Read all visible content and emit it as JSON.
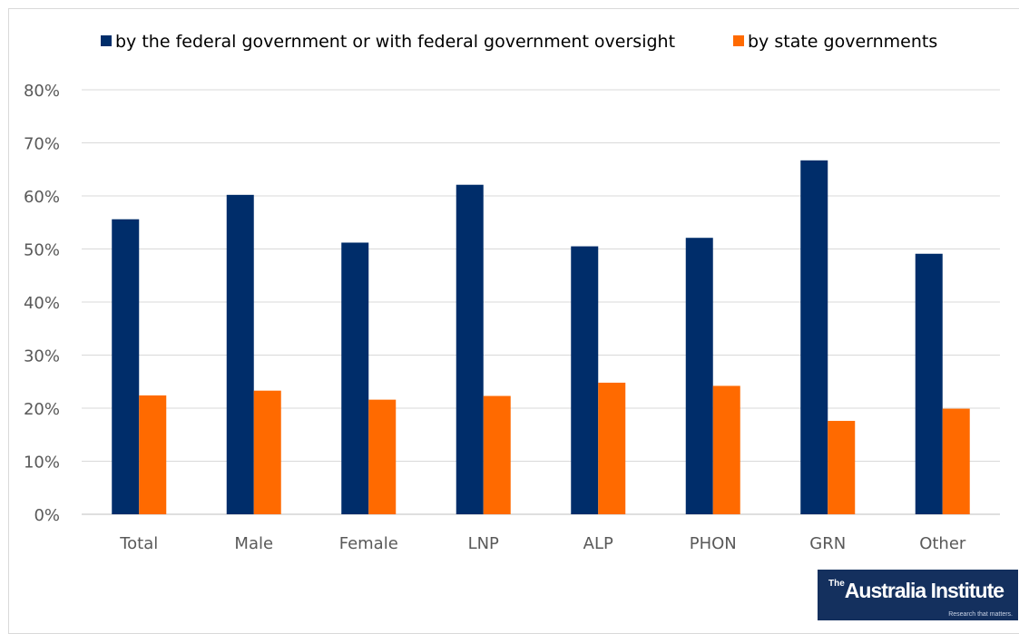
{
  "chart_data": {
    "type": "bar",
    "categories": [
      "Total",
      "Male",
      "Female",
      "LNP",
      "ALP",
      "PHON",
      "GRN",
      "Other"
    ],
    "series": [
      {
        "name": "by the federal government or with federal government oversight",
        "color": "#002d6a",
        "values": [
          55.6,
          60.2,
          51.2,
          62.1,
          50.5,
          52.1,
          66.7,
          49.1
        ]
      },
      {
        "name": "by state governments",
        "color": "#ff6a00",
        "values": [
          22.4,
          23.3,
          21.6,
          22.3,
          24.8,
          24.2,
          17.6,
          19.9
        ]
      }
    ],
    "ylim": [
      0,
      80
    ],
    "yticks": [
      0,
      10,
      20,
      30,
      40,
      50,
      60,
      70,
      80
    ],
    "ytick_format": "percent",
    "grid": true,
    "legend_position": "top"
  },
  "logo": {
    "sup": "The",
    "main": "Australia Institute",
    "tagline": "Research that matters."
  }
}
